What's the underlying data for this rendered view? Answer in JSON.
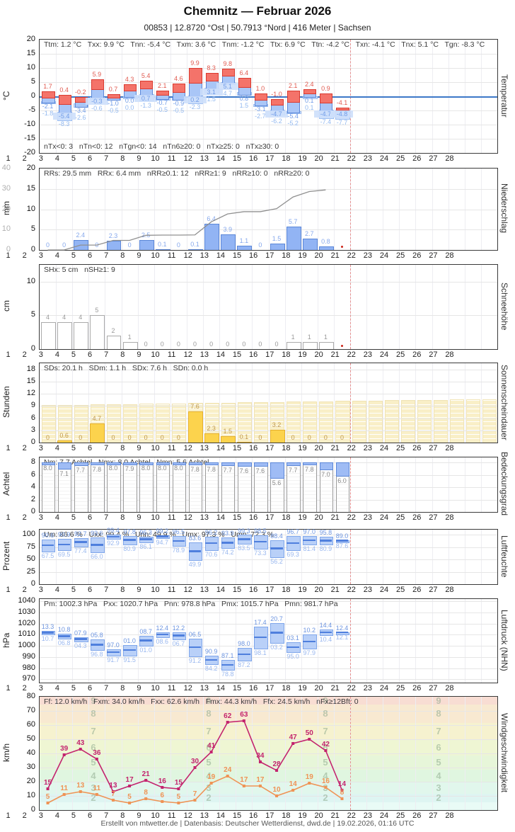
{
  "header": {
    "title": "Chemnitz  —  Februar 2026",
    "subtitle": "00853  |  12.8720 °Ost  |  50.7913 °Nord  |  416 Meter  |  Sachsen"
  },
  "footer": "Erstellt von mtwetter.de | Datenbasis: Deutscher Wetterdienst, dwd.de | 19.02.2026, 01:16 UTC",
  "day_labels": [
    1,
    2,
    3,
    4,
    5,
    6,
    7,
    8,
    9,
    10,
    11,
    12,
    13,
    14,
    15,
    16,
    17,
    18,
    19,
    20,
    21,
    22,
    23,
    24,
    25,
    26,
    27,
    28
  ],
  "current_day_boundary": 19,
  "colors": {
    "tmax_bar": "#f4736a",
    "tmax_border": "#d93a30",
    "tmax_label": "#e05a50",
    "tmin_bar": "#a9c6f7",
    "tmin_border": "#5d88d8",
    "tmin_label": "#6f9be8",
    "tgmin_bar": "#cddffb",
    "tgmin_border": "#9fc0f2",
    "tgmin_label": "#93b9f0",
    "zero_line": "#3c78c8",
    "precip_bar": "#92b4f4",
    "precip_border": "#5b87d8",
    "precip_label": "#86a8ec",
    "cumline": "#909090",
    "snow_border": "#aaaaaa",
    "snow_label": "#9a9a9a",
    "sun_bar": "#fcd34d",
    "sun_border": "#e5b02e",
    "sun_label": "#c0984a",
    "sun_bg": "#f9efc7",
    "cloud_cap": "#9fbcf5",
    "cloud_label": "#8a8a8a",
    "range_bar": "#b9d0f8",
    "range_border": "#7fa6ea",
    "range_mean": "#4f7fdd",
    "max_label": "#6d95e0",
    "min_label": "#9ab8ef",
    "gust_line": "#c3246e",
    "meanwind_line": "#ef9355",
    "missing_dot": "#cc2418",
    "dashed_marker": "#e59090"
  },
  "chart_data": [
    {
      "id": "temperature",
      "type": "temp",
      "right_label": "Temperatur",
      "unit": "°C",
      "ylim": [
        -20,
        20
      ],
      "yticks": [
        20,
        15,
        10,
        5,
        0,
        -5,
        -10,
        -15,
        -20
      ],
      "stats_top": "Ttm: 1.2 °C   Txx: 9.9 °C   Tnn: -5.4 °C   Txm: 3.6 °C   Tnm: -1.2 °C   Ttx: 6.9 °C   Ttn: -4.2 °C   Txn: -4.1 °C   Tnx: 5.1 °C   Tgn: -8.3 °C",
      "stats_bottom": "nTx<0: 3   nTn<0: 12   nTgn<0: 14   nTn6≥20: 0   nTx≥25: 0   nTx≥30: 0",
      "tmax": [
        1.7,
        0.4,
        -0.2,
        5.9,
        0.7,
        4.3,
        5.4,
        2.1,
        4.6,
        9.9,
        8.3,
        9.8,
        6.4,
        1.0,
        -1.0,
        2.1,
        2.4,
        0.9,
        -4.1
      ],
      "tmin": [
        -2.1,
        -5.4,
        -3.4,
        -0.3,
        -1.0,
        0.0,
        0.7,
        -0.7,
        -0.9,
        0.2,
        3.1,
        5.1,
        0.8,
        -3.1,
        -4.7,
        -5.4,
        0.1,
        -4.7,
        -4.8
      ],
      "tgmin": [
        -1.8,
        -8.3,
        -2.6,
        -0.6,
        -0.5,
        0.0,
        -1.3,
        -0.5,
        -0.5,
        -2.3,
        1.5,
        4.7,
        1.5,
        -2.7,
        -6.2,
        -5.2,
        0.1,
        -7.4,
        -7.7
      ]
    },
    {
      "id": "precipitation",
      "type": "bar",
      "right_label": "Niederschlag",
      "unit": "mm",
      "ylim": [
        0,
        20
      ],
      "yticks": [
        20,
        15,
        10,
        5,
        0
      ],
      "ylim2": [
        0,
        40
      ],
      "yticks2": [
        40,
        30,
        20,
        10,
        0
      ],
      "stats_top": "RRs: 29.5 mm   RRx: 6.4 mm   nRR≥0.1: 12   nRR≥1: 9   nRR≥10: 0   nRR≥20: 0",
      "values": [
        0,
        0,
        2.4,
        0,
        2.3,
        0,
        2.5,
        0.1,
        0,
        0.1,
        6.4,
        3.9,
        1.1,
        0,
        1.5,
        5.7,
        2.7,
        0.8
      ],
      "decimals": 1,
      "cumulative": [
        0,
        0,
        2.4,
        2.4,
        4.7,
        4.7,
        7.2,
        7.3,
        7.3,
        7.4,
        13.8,
        17.7,
        18.8,
        18.8,
        20.3,
        26.0,
        28.7,
        29.5
      ],
      "missing": [
        19
      ]
    },
    {
      "id": "snow",
      "type": "bar",
      "right_label": "Schneehöhe",
      "unit": "cm",
      "ylim": [
        0,
        12.5
      ],
      "yticks": [
        10,
        5,
        0
      ],
      "stats_top": "SHx: 5 cm   nSH≥1: 9",
      "values": [
        4,
        4,
        4,
        5,
        2,
        1,
        0,
        0,
        0,
        0,
        0,
        0,
        0,
        0,
        0,
        1,
        1,
        1
      ],
      "decimals": 0,
      "missing": [
        19
      ]
    },
    {
      "id": "sunshine",
      "type": "bar",
      "right_label": "Sonnenscheindauer",
      "unit": "Stunden",
      "ylim": [
        0,
        19.5
      ],
      "yticks": [
        18,
        15,
        12,
        9,
        6,
        3,
        0
      ],
      "stats_top": "SDs: 20.1 h   SDm: 1.1 h   SDx: 7.6 h   SDn: 0.0 h",
      "values": [
        0,
        0.6,
        0,
        4.7,
        0,
        0,
        0,
        0,
        0,
        7.6,
        2.3,
        1.5,
        0.1,
        0,
        3.2,
        0,
        0,
        0,
        0
      ],
      "decimals": 1,
      "daylength_bg": {
        "start": 9.2,
        "end": 10.7
      }
    },
    {
      "id": "cloudcover",
      "type": "cloud",
      "right_label": "Bedeckungsgrad",
      "unit": "Achtel",
      "ylim": [
        0,
        8.8
      ],
      "yticks": [
        8,
        6,
        4,
        2,
        0
      ],
      "full_scale": 8,
      "stats_top": "Nm: 7.7 Achtel   Nmx: 8.0 Achtel   Nmn: 5.6 Achtel",
      "values": [
        8.0,
        7.1,
        7.7,
        7.8,
        8.0,
        7.9,
        8.0,
        8.0,
        8.0,
        7.8,
        7.8,
        7.7,
        7.6,
        7.6,
        5.6,
        7.7,
        7.8,
        7.0,
        6.0
      ]
    },
    {
      "id": "humidity",
      "type": "range",
      "right_label": "Luftfeuchte",
      "unit": "Prozent",
      "ylim": [
        0,
        110
      ],
      "yticks": [
        100,
        75,
        50,
        25,
        0
      ],
      "stats_top": "Um: 86.6 %   Uxx: 99.4 %   Unn: 49.9 %   Umx: 97.3 %   Umn: 72.3 %",
      "vmax": [
        90.6,
        90.9,
        92.7,
        93.6,
        99.4,
        97.8,
        96.3,
        99.2,
        96.5,
        83.6,
        96.2,
        93.9,
        99.3,
        98.5,
        88.4,
        96.7,
        97.0,
        95.8,
        89.0
      ],
      "vmin": [
        67.5,
        69.5,
        77.4,
        66.0,
        92.9,
        80.9,
        86.1,
        94.7,
        78.9,
        49.9,
        70.6,
        74.2,
        83.5,
        73.3,
        56.2,
        69.3,
        81.4,
        80.9,
        87.6
      ],
      "label_mod100": false
    },
    {
      "id": "pressure",
      "type": "range",
      "right_label": "Luftdruck (NHN)",
      "unit": "hPa",
      "ylim": [
        967,
        1042
      ],
      "yticks": [
        1040,
        1030,
        1020,
        1010,
        1000,
        990,
        980,
        970
      ],
      "stats_top": "Pm: 1002.3 hPa   Pxx: 1020.7 hPa   Pnn: 978.8 hPa   Pmx: 1015.7 hPa   Pmn: 981.7 hPa",
      "vmax": [
        1013.3,
        1010.8,
        1007.9,
        1005.8,
        997.0,
        1001.0,
        1008.7,
        1012.4,
        1012.2,
        1006.5,
        990.9,
        987.1,
        998.0,
        1017.4,
        1020.7,
        1003.1,
        1010.2,
        1014.4,
        1012.4
      ],
      "vmin": [
        1010.7,
        1006.8,
        1004.3,
        996.8,
        991.7,
        991.5,
        1001.0,
        1008.6,
        1006.7,
        991.2,
        984.2,
        978.8,
        987.2,
        998.1,
        1003.2,
        995.0,
        997.9,
        1010.4,
        1012.1
      ],
      "label_mod100": true
    },
    {
      "id": "wind",
      "type": "lines",
      "right_label": "Windgeschwindigkeit",
      "unit": "km/h",
      "ylim": [
        0,
        80
      ],
      "yticks": [
        80,
        70,
        60,
        50,
        40,
        30,
        20,
        10,
        0
      ],
      "stats_top": "Ff: 12.0 km/h   Fxm: 34.0 km/h   Fxx: 62.6 km/h   Fmx: 44.3 km/h   Ffx: 24.5 km/h   nFx≥12Bft: 0",
      "series": [
        {
          "name": "gusts",
          "color": "#c3246e",
          "values": [
            15,
            39,
            43,
            36,
            13,
            17,
            21,
            16,
            15,
            30,
            41,
            62,
            63,
            34,
            28,
            47,
            50,
            42,
            14
          ]
        },
        {
          "name": "mean-wind",
          "color": "#ef9355",
          "values": [
            5,
            11,
            13,
            11,
            7,
            5,
            8,
            6,
            5,
            7,
            19,
            24,
            17,
            17,
            10,
            14,
            19,
            16,
            8
          ]
        }
      ],
      "beaufort_bands": [
        {
          "from": 0,
          "to": 5.5,
          "color": "#e9fbf6"
        },
        {
          "from": 5.5,
          "to": 11.5,
          "color": "#def5f2"
        },
        {
          "from": 11.5,
          "to": 19.5,
          "color": "#e1f7ec"
        },
        {
          "from": 19.5,
          "to": 28.5,
          "color": "#e0f6e0"
        },
        {
          "from": 28.5,
          "to": 38.5,
          "color": "#e7f6d9"
        },
        {
          "from": 38.5,
          "to": 49.5,
          "color": "#eff6d3"
        },
        {
          "from": 49.5,
          "to": 61.5,
          "color": "#f6f2cf"
        },
        {
          "from": 61.5,
          "to": 74.5,
          "color": "#f8e9d1"
        },
        {
          "from": 74.5,
          "to": 80,
          "color": "#f8ddd3"
        }
      ],
      "beaufort_numbers": [
        {
          "bft": "2",
          "kmh": 8.5
        },
        {
          "bft": "3",
          "kmh": 15.5
        },
        {
          "bft": "4",
          "kmh": 24
        },
        {
          "bft": "5",
          "kmh": 33.5
        },
        {
          "bft": "6",
          "kmh": 44
        },
        {
          "bft": "7",
          "kmh": 55.5
        },
        {
          "bft": "8",
          "kmh": 68
        },
        {
          "bft": "9",
          "kmh": 77
        }
      ]
    }
  ]
}
